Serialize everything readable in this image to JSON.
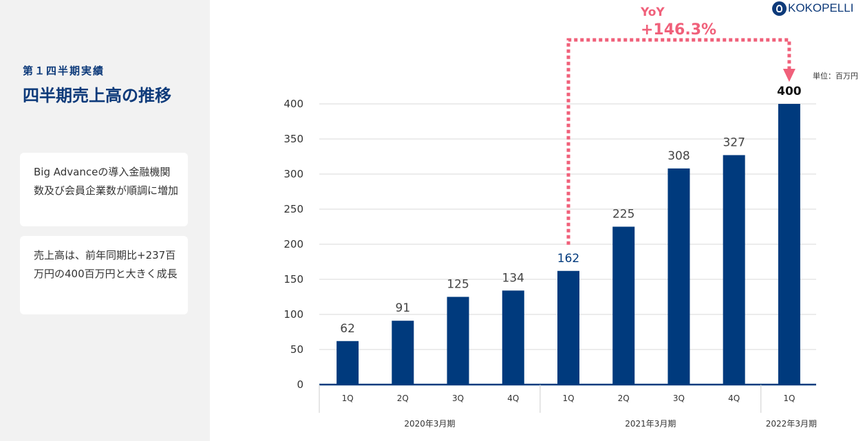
{
  "sidebar": {
    "section_label": "第１四半期実績",
    "title": "四半期売上高の推移",
    "cards": [
      "Big Advanceの導入金融機関数及び会員企業数が順調に増加",
      "売上高は、前年同期比+237百万円の400百万円と大きく成長"
    ]
  },
  "header": {
    "logo_text": "KOKOPELLI",
    "unit_label": "単位：百万円"
  },
  "colors": {
    "bar": "#003a7d",
    "accent": "#f0607a",
    "title": "#0d3a7a",
    "sidebar_bg": "#f2f2f2"
  },
  "chart_data": {
    "type": "bar",
    "categories": [
      "1Q",
      "2Q",
      "3Q",
      "4Q",
      "1Q",
      "2Q",
      "3Q",
      "4Q",
      "1Q"
    ],
    "values": [
      62,
      91,
      125,
      134,
      162,
      225,
      308,
      327,
      400
    ],
    "groups": [
      {
        "label": "2020年3月期",
        "count": 4
      },
      {
        "label": "2021年3月期",
        "count": 4
      },
      {
        "label": "2022年3月期",
        "count": 1
      }
    ],
    "yticks": [
      0,
      50,
      100,
      150,
      200,
      250,
      300,
      350,
      400
    ],
    "ylim": [
      0,
      400
    ],
    "grid": true,
    "annotation": {
      "title": "YoY",
      "value": "+146.3%",
      "from_index": 4,
      "to_index": 8
    }
  }
}
